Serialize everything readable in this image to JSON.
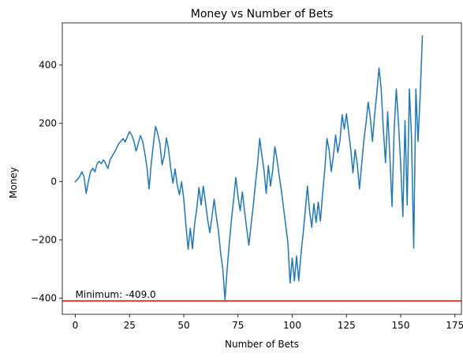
{
  "chart_data": {
    "type": "line",
    "title": "Money vs Number of Bets",
    "xlabel": "Number of Bets",
    "ylabel": "Money",
    "xlim": [
      -6,
      178
    ],
    "ylim": [
      -455,
      545
    ],
    "x_ticks": [
      0,
      25,
      50,
      75,
      100,
      125,
      150,
      175
    ],
    "y_ticks": [
      -400,
      -200,
      0,
      200,
      400
    ],
    "grid": false,
    "legend": "none",
    "series": [
      {
        "color": "#1f77b4",
        "points": [
          [
            0,
            0
          ],
          [
            1,
            8
          ],
          [
            2,
            17
          ],
          [
            3,
            34
          ],
          [
            4,
            17
          ],
          [
            5,
            -40
          ],
          [
            6,
            0
          ],
          [
            7,
            34
          ],
          [
            8,
            46
          ],
          [
            9,
            34
          ],
          [
            10,
            60
          ],
          [
            11,
            70
          ],
          [
            12,
            62
          ],
          [
            13,
            75
          ],
          [
            14,
            62
          ],
          [
            15,
            45
          ],
          [
            16,
            75
          ],
          [
            17,
            88
          ],
          [
            18,
            100
          ],
          [
            19,
            115
          ],
          [
            20,
            130
          ],
          [
            22,
            148
          ],
          [
            23,
            136
          ],
          [
            24,
            155
          ],
          [
            25,
            172
          ],
          [
            26,
            160
          ],
          [
            27,
            140
          ],
          [
            28,
            105
          ],
          [
            29,
            130
          ],
          [
            30,
            158
          ],
          [
            31,
            140
          ],
          [
            32,
            100
          ],
          [
            33,
            50
          ],
          [
            34,
            -25
          ],
          [
            35,
            62
          ],
          [
            36,
            130
          ],
          [
            37,
            190
          ],
          [
            38,
            165
          ],
          [
            39,
            130
          ],
          [
            40,
            58
          ],
          [
            41,
            88
          ],
          [
            42,
            150
          ],
          [
            43,
            110
          ],
          [
            44,
            45
          ],
          [
            45,
            -5
          ],
          [
            46,
            44
          ],
          [
            47,
            -12
          ],
          [
            48,
            -45
          ],
          [
            49,
            0
          ],
          [
            50,
            -60
          ],
          [
            51,
            -150
          ],
          [
            52,
            -232
          ],
          [
            53,
            -160
          ],
          [
            54,
            -230
          ],
          [
            55,
            -145
          ],
          [
            56,
            -92
          ],
          [
            57,
            -20
          ],
          [
            58,
            -80
          ],
          [
            59,
            -15
          ],
          [
            60,
            -70
          ],
          [
            61,
            -130
          ],
          [
            62,
            -175
          ],
          [
            63,
            -120
          ],
          [
            64,
            -60
          ],
          [
            65,
            -120
          ],
          [
            66,
            -170
          ],
          [
            67,
            -245
          ],
          [
            68,
            -300
          ],
          [
            69,
            -405
          ],
          [
            70,
            -300
          ],
          [
            71,
            -210
          ],
          [
            72,
            -130
          ],
          [
            73,
            -60
          ],
          [
            74,
            15
          ],
          [
            75,
            -50
          ],
          [
            76,
            -100
          ],
          [
            77,
            -35
          ],
          [
            78,
            -100
          ],
          [
            79,
            -160
          ],
          [
            80,
            -218
          ],
          [
            81,
            -150
          ],
          [
            82,
            -85
          ],
          [
            83,
            -10
          ],
          [
            84,
            60
          ],
          [
            85,
            148
          ],
          [
            86,
            90
          ],
          [
            87,
            38
          ],
          [
            88,
            -40
          ],
          [
            89,
            55
          ],
          [
            90,
            -15
          ],
          [
            91,
            40
          ],
          [
            92,
            120
          ],
          [
            93,
            75
          ],
          [
            94,
            20
          ],
          [
            95,
            -30
          ],
          [
            96,
            -90
          ],
          [
            97,
            -150
          ],
          [
            98,
            -210
          ],
          [
            99,
            -348
          ],
          [
            100,
            -262
          ],
          [
            101,
            -340
          ],
          [
            102,
            -255
          ],
          [
            103,
            -340
          ],
          [
            104,
            -250
          ],
          [
            105,
            -180
          ],
          [
            106,
            -100
          ],
          [
            107,
            -15
          ],
          [
            108,
            -100
          ],
          [
            109,
            -157
          ],
          [
            110,
            -75
          ],
          [
            111,
            -140
          ],
          [
            112,
            -70
          ],
          [
            113,
            -135
          ],
          [
            114,
            -40
          ],
          [
            115,
            40
          ],
          [
            116,
            148
          ],
          [
            117,
            110
          ],
          [
            118,
            35
          ],
          [
            119,
            90
          ],
          [
            120,
            160
          ],
          [
            121,
            100
          ],
          [
            122,
            140
          ],
          [
            123,
            230
          ],
          [
            124,
            180
          ],
          [
            125,
            233
          ],
          [
            126,
            170
          ],
          [
            127,
            110
          ],
          [
            128,
            30
          ],
          [
            129,
            110
          ],
          [
            130,
            60
          ],
          [
            131,
            -25
          ],
          [
            132,
            60
          ],
          [
            133,
            140
          ],
          [
            134,
            200
          ],
          [
            135,
            273
          ],
          [
            136,
            220
          ],
          [
            137,
            138
          ],
          [
            138,
            230
          ],
          [
            139,
            305
          ],
          [
            140,
            390
          ],
          [
            141,
            320
          ],
          [
            142,
            180
          ],
          [
            143,
            65
          ],
          [
            144,
            240
          ],
          [
            145,
            90
          ],
          [
            146,
            -85
          ],
          [
            147,
            180
          ],
          [
            148,
            318
          ],
          [
            149,
            200
          ],
          [
            150,
            60
          ],
          [
            151,
            -120
          ],
          [
            152,
            210
          ],
          [
            153,
            -80
          ],
          [
            154,
            318
          ],
          [
            155,
            150
          ],
          [
            156,
            -228
          ],
          [
            157,
            318
          ],
          [
            158,
            138
          ],
          [
            159,
            300
          ],
          [
            160,
            500
          ]
        ]
      }
    ],
    "reference_line": {
      "y": -409.0,
      "color": "#ff0000",
      "label": "Minimum: -409.0"
    }
  }
}
